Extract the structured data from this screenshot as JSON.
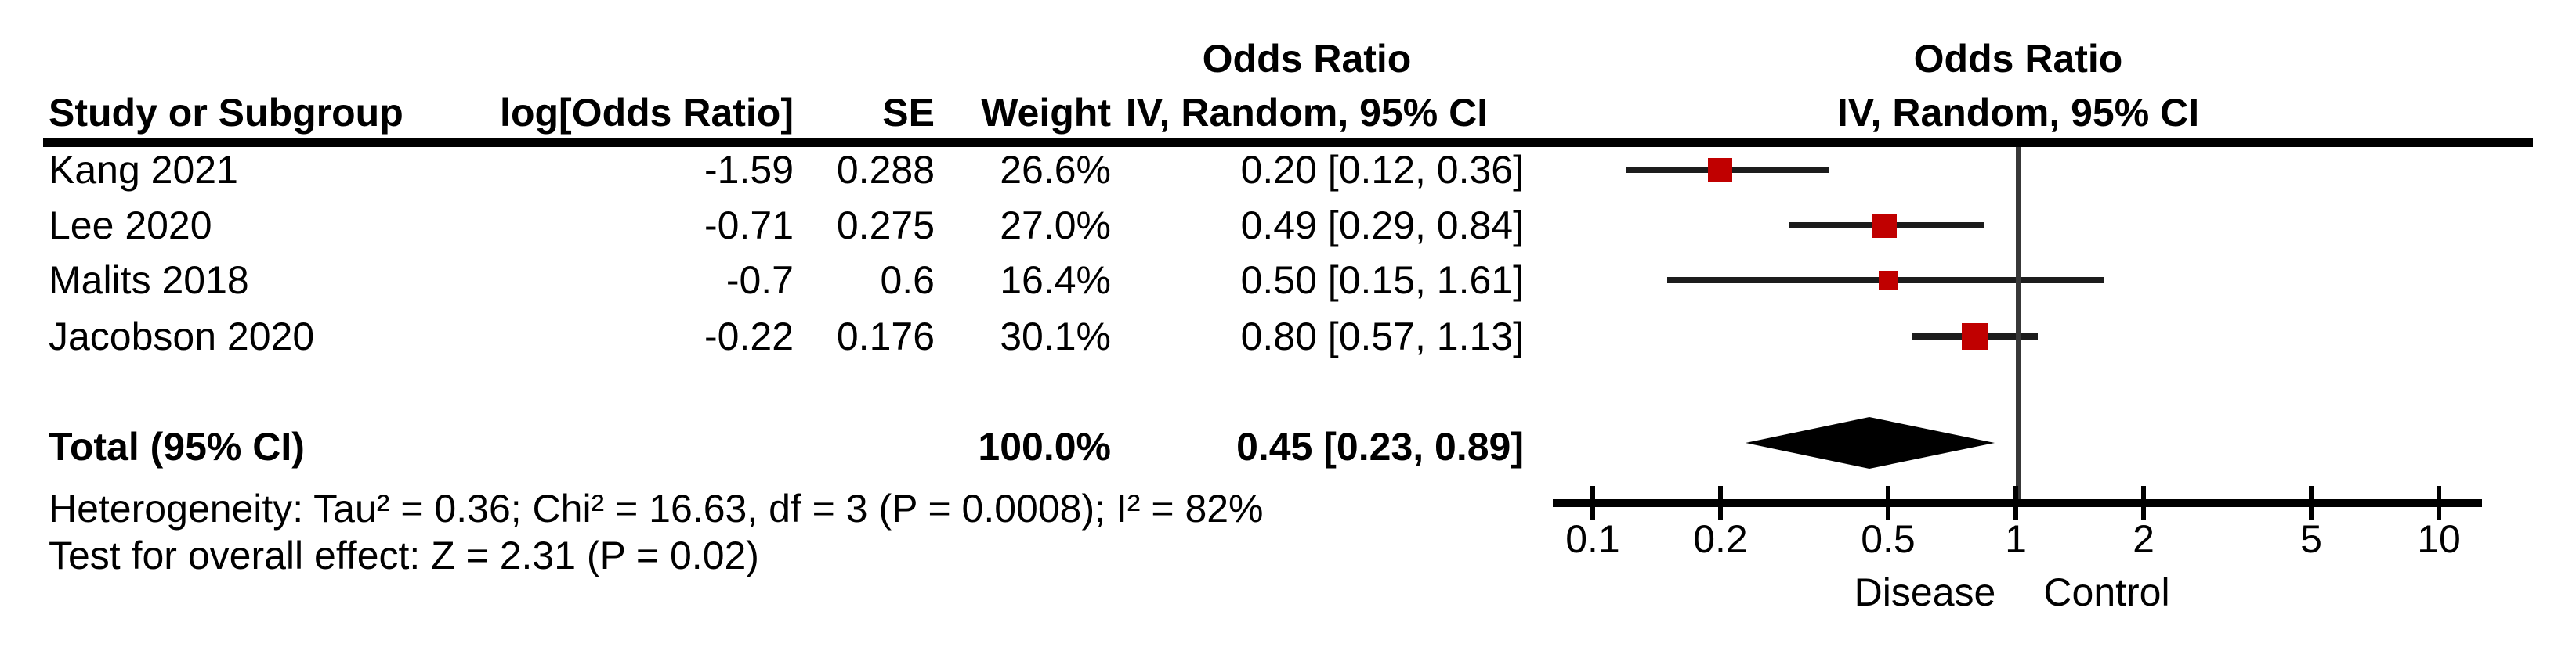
{
  "colors": {
    "marker_red": "#c00000",
    "line_dark": "#1c1c1c",
    "null_line_gray": "#383838",
    "text": "#000000"
  },
  "table": {
    "col_headers": {
      "study": "Study or Subgroup",
      "log_or": "log[Odds Ratio]",
      "se": "SE",
      "weight": "Weight",
      "or_group_line1": "Odds Ratio",
      "or_group_line2": "IV, Random, 95% CI"
    },
    "plot_headers": {
      "line1": "Odds Ratio",
      "line2": "IV, Random, 95% CI"
    },
    "total_label": "Total (95% CI)",
    "total_weight": "100.0%",
    "total_or_ci": "0.45 [0.23, 0.89]",
    "footnotes": {
      "heterogeneity": "Heterogeneity: Tau² = 0.36; Chi² = 16.63, df = 3 (P = 0.0008); I² = 82%",
      "overall_effect": "Test for overall effect: Z = 2.31 (P = 0.02)"
    }
  },
  "chart_data": {
    "type": "forest",
    "x_scale": "log",
    "xlim": [
      0.1,
      10
    ],
    "null_value": 1,
    "axis_ticks": [
      "0.1",
      "0.2",
      "0.5",
      "1",
      "2",
      "5",
      "10"
    ],
    "favours_left": "Disease",
    "favours_right": "Control",
    "effect_measure": "Odds Ratio",
    "model": "IV, Random, 95% CI",
    "studies": [
      {
        "name": "Kang 2021",
        "log_or": "-1.59",
        "se": "0.288",
        "weight_label": "26.6%",
        "weight": 26.6,
        "or": 0.2,
        "ci_low": 0.12,
        "ci_high": 0.36,
        "or_ci_label": "0.20 [0.12, 0.36]"
      },
      {
        "name": "Lee 2020",
        "log_or": "-0.71",
        "se": "0.275",
        "weight_label": "27.0%",
        "weight": 27.0,
        "or": 0.49,
        "ci_low": 0.29,
        "ci_high": 0.84,
        "or_ci_label": "0.49 [0.29, 0.84]"
      },
      {
        "name": "Malits 2018",
        "log_or": "-0.7",
        "se": "0.6",
        "weight_label": "16.4%",
        "weight": 16.4,
        "or": 0.5,
        "ci_low": 0.15,
        "ci_high": 1.61,
        "or_ci_label": "0.50 [0.15, 1.61]"
      },
      {
        "name": "Jacobson 2020",
        "log_or": "-0.22",
        "se": "0.176",
        "weight_label": "30.1%",
        "weight": 30.1,
        "or": 0.8,
        "ci_low": 0.57,
        "ci_high": 1.13,
        "or_ci_label": "0.80 [0.57, 1.13]"
      }
    ],
    "total": {
      "or": 0.45,
      "ci_low": 0.23,
      "ci_high": 0.89,
      "weight": 100.0
    },
    "heterogeneity": {
      "tau2": 0.36,
      "chi2": 16.63,
      "df": 3,
      "p": 0.0008,
      "i2_pct": 82
    },
    "overall_effect": {
      "z": 2.31,
      "p": 0.02
    }
  }
}
